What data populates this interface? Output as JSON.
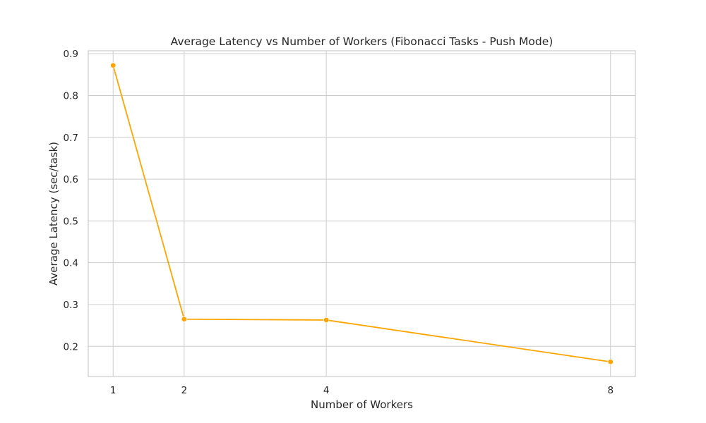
{
  "chart_data": {
    "type": "line",
    "title": "Average Latency vs Number of Workers (Fibonacci Tasks - Push Mode)",
    "xlabel": "Number of Workers",
    "ylabel": "Average Latency (sec/task)",
    "x": [
      1,
      2,
      4,
      8
    ],
    "xticks": [
      "1",
      "2",
      "4",
      "8"
    ],
    "yticks": [
      "0.2",
      "0.3",
      "0.4",
      "0.5",
      "0.6",
      "0.7",
      "0.8",
      "0.9"
    ],
    "ytick_values": [
      0.2,
      0.3,
      0.4,
      0.5,
      0.6,
      0.7,
      0.8,
      0.9
    ],
    "xlim": [
      0.65,
      8.35
    ],
    "ylim": [
      0.128,
      0.907
    ],
    "series": [
      {
        "values": [
          0.872,
          0.265,
          0.263,
          0.163
        ],
        "color": "#ffa500"
      }
    ],
    "grid": true,
    "legend": "none"
  }
}
